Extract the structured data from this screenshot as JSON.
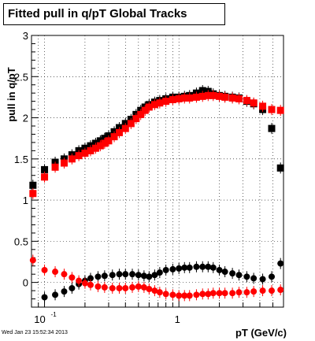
{
  "chart_data": {
    "type": "scatter",
    "title": "Fitted pull in q/pT  Global Tracks",
    "xlabel": "pT (GeV/c)",
    "ylabel": "pull in q/pT",
    "xscale": "log",
    "xlim": [
      0.08,
      6.0
    ],
    "ylim": [
      -0.3,
      3.0
    ],
    "grid": true,
    "x_ticklabels": [
      {
        "x": 0.1,
        "base": "10",
        "exp": "-1"
      },
      {
        "x": 1,
        "base": "1",
        "exp": ""
      }
    ],
    "y_ticks": [
      {
        "value": 0,
        "label": "0"
      },
      {
        "value": 0.5,
        "label": "0.5"
      },
      {
        "value": 1,
        "label": "1"
      },
      {
        "value": 1.5,
        "label": "1.5"
      },
      {
        "value": 2,
        "label": "2"
      },
      {
        "value": 2.5,
        "label": "2.5"
      },
      {
        "value": 3,
        "label": "3"
      }
    ],
    "series": [
      {
        "color": "#000000",
        "marker": "square",
        "points": [
          [
            0.082,
            1.18
          ],
          [
            0.1,
            1.37
          ],
          [
            0.12,
            1.46
          ],
          [
            0.14,
            1.5
          ],
          [
            0.16,
            1.55
          ],
          [
            0.18,
            1.6
          ],
          [
            0.2,
            1.63
          ],
          [
            0.22,
            1.66
          ],
          [
            0.24,
            1.69
          ],
          [
            0.26,
            1.72
          ],
          [
            0.28,
            1.75
          ],
          [
            0.3,
            1.78
          ],
          [
            0.33,
            1.83
          ],
          [
            0.36,
            1.88
          ],
          [
            0.4,
            1.93
          ],
          [
            0.44,
            1.98
          ],
          [
            0.48,
            2.04
          ],
          [
            0.52,
            2.09
          ],
          [
            0.56,
            2.13
          ],
          [
            0.6,
            2.16
          ],
          [
            0.66,
            2.19
          ],
          [
            0.72,
            2.21
          ],
          [
            0.8,
            2.23
          ],
          [
            0.9,
            2.25
          ],
          [
            1.0,
            2.25
          ],
          [
            1.1,
            2.26
          ],
          [
            1.2,
            2.27
          ],
          [
            1.35,
            2.3
          ],
          [
            1.5,
            2.33
          ],
          [
            1.65,
            2.32
          ],
          [
            1.8,
            2.29
          ],
          [
            2.0,
            2.27
          ],
          [
            2.2,
            2.26
          ],
          [
            2.5,
            2.25
          ],
          [
            2.8,
            2.24
          ],
          [
            3.2,
            2.2
          ],
          [
            3.6,
            2.17
          ],
          [
            4.2,
            2.1
          ],
          [
            4.9,
            1.87
          ],
          [
            5.7,
            1.39
          ]
        ]
      },
      {
        "color": "#ff0000",
        "marker": "square",
        "points": [
          [
            0.082,
            1.08
          ],
          [
            0.1,
            1.28
          ],
          [
            0.12,
            1.4
          ],
          [
            0.14,
            1.45
          ],
          [
            0.16,
            1.5
          ],
          [
            0.18,
            1.54
          ],
          [
            0.2,
            1.57
          ],
          [
            0.22,
            1.6
          ],
          [
            0.24,
            1.63
          ],
          [
            0.26,
            1.66
          ],
          [
            0.28,
            1.69
          ],
          [
            0.3,
            1.72
          ],
          [
            0.33,
            1.77
          ],
          [
            0.36,
            1.82
          ],
          [
            0.4,
            1.87
          ],
          [
            0.44,
            1.93
          ],
          [
            0.48,
            1.99
          ],
          [
            0.52,
            2.04
          ],
          [
            0.56,
            2.09
          ],
          [
            0.6,
            2.13
          ],
          [
            0.66,
            2.16
          ],
          [
            0.72,
            2.18
          ],
          [
            0.8,
            2.2
          ],
          [
            0.9,
            2.22
          ],
          [
            1.0,
            2.23
          ],
          [
            1.1,
            2.24
          ],
          [
            1.2,
            2.24
          ],
          [
            1.35,
            2.25
          ],
          [
            1.5,
            2.26
          ],
          [
            1.65,
            2.27
          ],
          [
            1.8,
            2.27
          ],
          [
            2.0,
            2.26
          ],
          [
            2.2,
            2.25
          ],
          [
            2.5,
            2.24
          ],
          [
            2.8,
            2.23
          ],
          [
            3.2,
            2.21
          ],
          [
            3.6,
            2.18
          ],
          [
            4.2,
            2.14
          ],
          [
            4.9,
            2.1
          ],
          [
            5.7,
            2.09
          ]
        ]
      },
      {
        "color": "#000000",
        "marker": "circle",
        "points": [
          [
            0.1,
            -0.18
          ],
          [
            0.12,
            -0.15
          ],
          [
            0.14,
            -0.11
          ],
          [
            0.16,
            -0.07
          ],
          [
            0.18,
            -0.02
          ],
          [
            0.2,
            0.02
          ],
          [
            0.22,
            0.05
          ],
          [
            0.25,
            0.07
          ],
          [
            0.28,
            0.08
          ],
          [
            0.32,
            0.09
          ],
          [
            0.36,
            0.1
          ],
          [
            0.4,
            0.1
          ],
          [
            0.45,
            0.1
          ],
          [
            0.5,
            0.09
          ],
          [
            0.55,
            0.08
          ],
          [
            0.6,
            0.07
          ],
          [
            0.66,
            0.09
          ],
          [
            0.72,
            0.12
          ],
          [
            0.8,
            0.15
          ],
          [
            0.9,
            0.16
          ],
          [
            1.0,
            0.17
          ],
          [
            1.1,
            0.18
          ],
          [
            1.2,
            0.18
          ],
          [
            1.35,
            0.19
          ],
          [
            1.5,
            0.19
          ],
          [
            1.65,
            0.19
          ],
          [
            1.8,
            0.18
          ],
          [
            2.0,
            0.15
          ],
          [
            2.2,
            0.13
          ],
          [
            2.5,
            0.11
          ],
          [
            2.8,
            0.09
          ],
          [
            3.2,
            0.07
          ],
          [
            3.6,
            0.05
          ],
          [
            4.2,
            0.04
          ],
          [
            4.9,
            0.07
          ],
          [
            5.7,
            0.23
          ]
        ]
      },
      {
        "color": "#ff0000",
        "marker": "circle",
        "points": [
          [
            0.082,
            0.27
          ],
          [
            0.1,
            0.15
          ],
          [
            0.12,
            0.13
          ],
          [
            0.14,
            0.1
          ],
          [
            0.16,
            0.06
          ],
          [
            0.18,
            0.02
          ],
          [
            0.2,
            -0.01
          ],
          [
            0.22,
            -0.03
          ],
          [
            0.25,
            -0.05
          ],
          [
            0.28,
            -0.06
          ],
          [
            0.32,
            -0.07
          ],
          [
            0.36,
            -0.07
          ],
          [
            0.4,
            -0.07
          ],
          [
            0.45,
            -0.06
          ],
          [
            0.5,
            -0.05
          ],
          [
            0.55,
            -0.06
          ],
          [
            0.6,
            -0.08
          ],
          [
            0.66,
            -0.1
          ],
          [
            0.72,
            -0.12
          ],
          [
            0.8,
            -0.14
          ],
          [
            0.9,
            -0.15
          ],
          [
            1.0,
            -0.16
          ],
          [
            1.1,
            -0.16
          ],
          [
            1.2,
            -0.16
          ],
          [
            1.35,
            -0.15
          ],
          [
            1.5,
            -0.14
          ],
          [
            1.65,
            -0.14
          ],
          [
            1.8,
            -0.13
          ],
          [
            2.0,
            -0.13
          ],
          [
            2.2,
            -0.13
          ],
          [
            2.5,
            -0.13
          ],
          [
            2.8,
            -0.12
          ],
          [
            3.2,
            -0.12
          ],
          [
            3.6,
            -0.11
          ],
          [
            4.2,
            -0.1
          ],
          [
            4.9,
            -0.1
          ],
          [
            5.7,
            -0.09
          ]
        ]
      }
    ]
  },
  "footer": "Wed Jan 23 15:52:34 2013"
}
